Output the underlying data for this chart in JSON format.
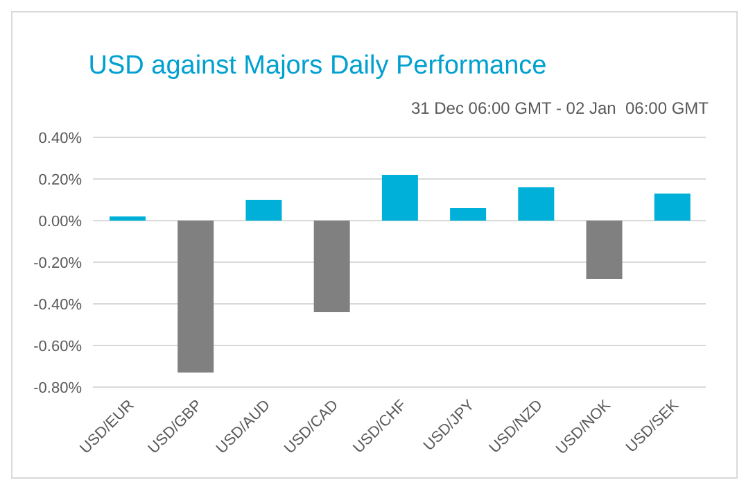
{
  "chart_data": {
    "type": "bar",
    "title": "USD against Majors Daily Performance",
    "subtitle": "31 Dec 06:00 GMT - 02 Jan  06:00 GMT",
    "categories": [
      "USD/EUR",
      "USD/GBP",
      "USD/AUD",
      "USD/CAD",
      "USD/CHF",
      "USD/JPY",
      "USD/NZD",
      "USD/NOK",
      "USD/SEK"
    ],
    "values": [
      0.02,
      -0.73,
      0.1,
      -0.44,
      0.22,
      0.06,
      0.16,
      -0.28,
      0.13
    ],
    "colors": [
      "#00b0d8",
      "#808080",
      "#00b0d8",
      "#808080",
      "#00b0d8",
      "#00b0d8",
      "#00b0d8",
      "#808080",
      "#00b0d8"
    ],
    "ylim": [
      -0.8,
      0.4
    ],
    "yticks": [
      {
        "value": -0.8,
        "label": "-0.80%"
      },
      {
        "value": -0.6,
        "label": "-0.60%"
      },
      {
        "value": -0.4,
        "label": "-0.40%"
      },
      {
        "value": -0.2,
        "label": "-0.20%"
      },
      {
        "value": 0,
        "label": "0.00%"
      },
      {
        "value": 0.2,
        "label": "0.20%"
      },
      {
        "value": 0.4,
        "label": "0.40%"
      }
    ],
    "grid": "y"
  }
}
